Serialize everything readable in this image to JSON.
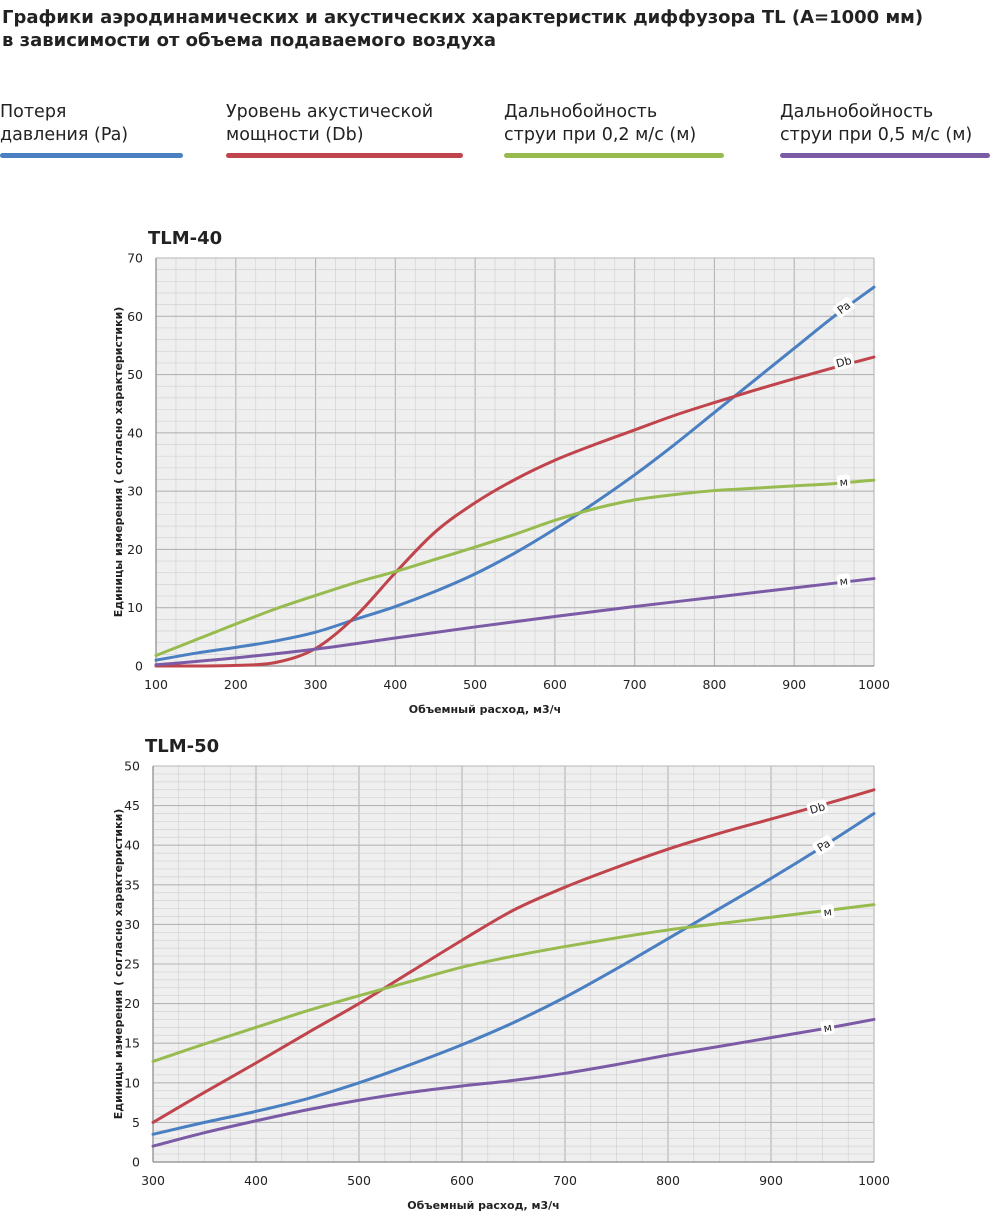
{
  "page_title_line1": "Графики аэродинамических и акустических характеристик  диффузора TL (А=1000 мм)",
  "page_title_line2": "в зависимости от объема подаваемого воздуха",
  "legend": [
    {
      "line1": "Потеря",
      "line2": "давления (Pa)",
      "color": "#4a7fc1"
    },
    {
      "line1": "Уровень акустической",
      "line2": "мощности (Db)",
      "color": "#c0444b"
    },
    {
      "line1": "Дальнобойность",
      "line2": "струи при 0,2 м/с (м)",
      "color": "#97bb4f"
    },
    {
      "line1": "Дальнобойность",
      "line2": "струи при 0,5 м/с (м)",
      "color": "#7c5ba6"
    }
  ],
  "chart_data": [
    {
      "type": "line",
      "title": "TLM-40",
      "xlabel": "Объемный расход, м3/ч",
      "ylabel": "Единицы измерения ( согласно характеристики)",
      "xlim": [
        100,
        1000
      ],
      "ylim": [
        0,
        70
      ],
      "xticks": [
        100,
        200,
        300,
        400,
        500,
        600,
        700,
        800,
        900,
        1000
      ],
      "yticks": [
        0,
        10,
        20,
        30,
        40,
        50,
        60,
        70
      ],
      "grid": true,
      "series": [
        {
          "label": "Pa",
          "color": "#4a7fc1",
          "x": [
            100,
            150,
            200,
            250,
            300,
            350,
            400,
            450,
            500,
            550,
            600,
            650,
            700,
            750,
            800,
            850,
            900,
            950,
            1000
          ],
          "y": [
            1,
            2.2,
            3.2,
            4.3,
            5.8,
            8,
            10.2,
            12.8,
            15.8,
            19.4,
            23.5,
            28,
            32.8,
            38,
            43.5,
            49,
            54.5,
            60,
            65
          ]
        },
        {
          "label": "Db",
          "color": "#c0444b",
          "x": [
            100,
            150,
            200,
            250,
            300,
            350,
            400,
            450,
            500,
            550,
            600,
            650,
            700,
            750,
            800,
            850,
            900,
            950,
            1000
          ],
          "y": [
            0,
            0,
            0.1,
            0.6,
            3,
            8.5,
            16,
            23,
            28,
            32,
            35.3,
            38,
            40.5,
            43,
            45.2,
            47.3,
            49.3,
            51.2,
            53
          ]
        },
        {
          "label": "м",
          "color": "#97bb4f",
          "x": [
            100,
            150,
            200,
            250,
            300,
            350,
            400,
            450,
            500,
            550,
            600,
            650,
            700,
            750,
            800,
            850,
            900,
            950,
            1000
          ],
          "y": [
            1.8,
            4.5,
            7.2,
            9.8,
            12.1,
            14.3,
            16.2,
            18.3,
            20.4,
            22.6,
            25,
            27,
            28.5,
            29.4,
            30.1,
            30.5,
            30.9,
            31.3,
            31.9
          ]
        },
        {
          "label": "м",
          "color": "#7c5ba6",
          "x": [
            100,
            200,
            300,
            400,
            500,
            600,
            700,
            800,
            900,
            1000
          ],
          "y": [
            0.2,
            1.4,
            2.9,
            4.8,
            6.7,
            8.5,
            10.2,
            11.8,
            13.4,
            15
          ]
        }
      ],
      "curve_labels": [
        {
          "text": "Pa",
          "x": 962,
          "y": 61.5,
          "series": 0
        },
        {
          "text": "Db",
          "x": 962,
          "y": 52.2,
          "series": 1
        },
        {
          "text": "м",
          "x": 962,
          "y": 31.6,
          "series": 2
        },
        {
          "text": "м",
          "x": 962,
          "y": 14.6,
          "series": 3
        }
      ]
    },
    {
      "type": "line",
      "title": "TLM-50",
      "xlabel": "Объемный расход, м3/ч",
      "ylabel": "Единицы измерения ( согласно характеристики)",
      "xlim": [
        300,
        1000
      ],
      "ylim": [
        0,
        50
      ],
      "xticks": [
        300,
        400,
        500,
        600,
        700,
        800,
        900,
        1000
      ],
      "yticks": [
        0,
        5,
        10,
        15,
        20,
        25,
        30,
        35,
        40,
        45,
        50
      ],
      "grid": true,
      "series": [
        {
          "label": "Db",
          "color": "#c0444b",
          "x": [
            300,
            350,
            400,
            450,
            500,
            550,
            600,
            650,
            700,
            750,
            800,
            850,
            900,
            950,
            1000
          ],
          "y": [
            5,
            8.8,
            12.5,
            16.3,
            20,
            24,
            28,
            31.8,
            34.7,
            37.2,
            39.5,
            41.5,
            43.3,
            45.1,
            47
          ]
        },
        {
          "label": "Pa",
          "color": "#4a7fc1",
          "x": [
            300,
            350,
            400,
            450,
            500,
            550,
            600,
            650,
            700,
            750,
            800,
            850,
            900,
            950,
            1000
          ],
          "y": [
            3.5,
            5,
            6.4,
            8,
            10,
            12.3,
            14.8,
            17.6,
            20.8,
            24.4,
            28.2,
            32,
            35.8,
            39.8,
            44
          ]
        },
        {
          "label": "м",
          "color": "#97bb4f",
          "x": [
            300,
            350,
            400,
            450,
            500,
            550,
            600,
            650,
            700,
            750,
            800,
            850,
            900,
            950,
            1000
          ],
          "y": [
            12.7,
            14.9,
            17,
            19.1,
            21,
            22.8,
            24.6,
            26,
            27.2,
            28.3,
            29.3,
            30.1,
            30.9,
            31.7,
            32.5
          ]
        },
        {
          "label": "м",
          "color": "#7c5ba6",
          "x": [
            300,
            350,
            400,
            450,
            500,
            550,
            600,
            650,
            700,
            750,
            800,
            850,
            900,
            950,
            1000
          ],
          "y": [
            2,
            3.7,
            5.2,
            6.6,
            7.8,
            8.8,
            9.6,
            10.3,
            11.2,
            12.3,
            13.5,
            14.6,
            15.7,
            16.8,
            18
          ]
        }
      ],
      "curve_labels": [
        {
          "text": "Db",
          "x": 945,
          "y": 44.7,
          "series": 0
        },
        {
          "text": "Pa",
          "x": 951,
          "y": 40.0,
          "series": 1
        },
        {
          "text": "м",
          "x": 955,
          "y": 31.6,
          "series": 2
        },
        {
          "text": "м",
          "x": 955,
          "y": 17.0,
          "series": 3
        }
      ]
    }
  ]
}
